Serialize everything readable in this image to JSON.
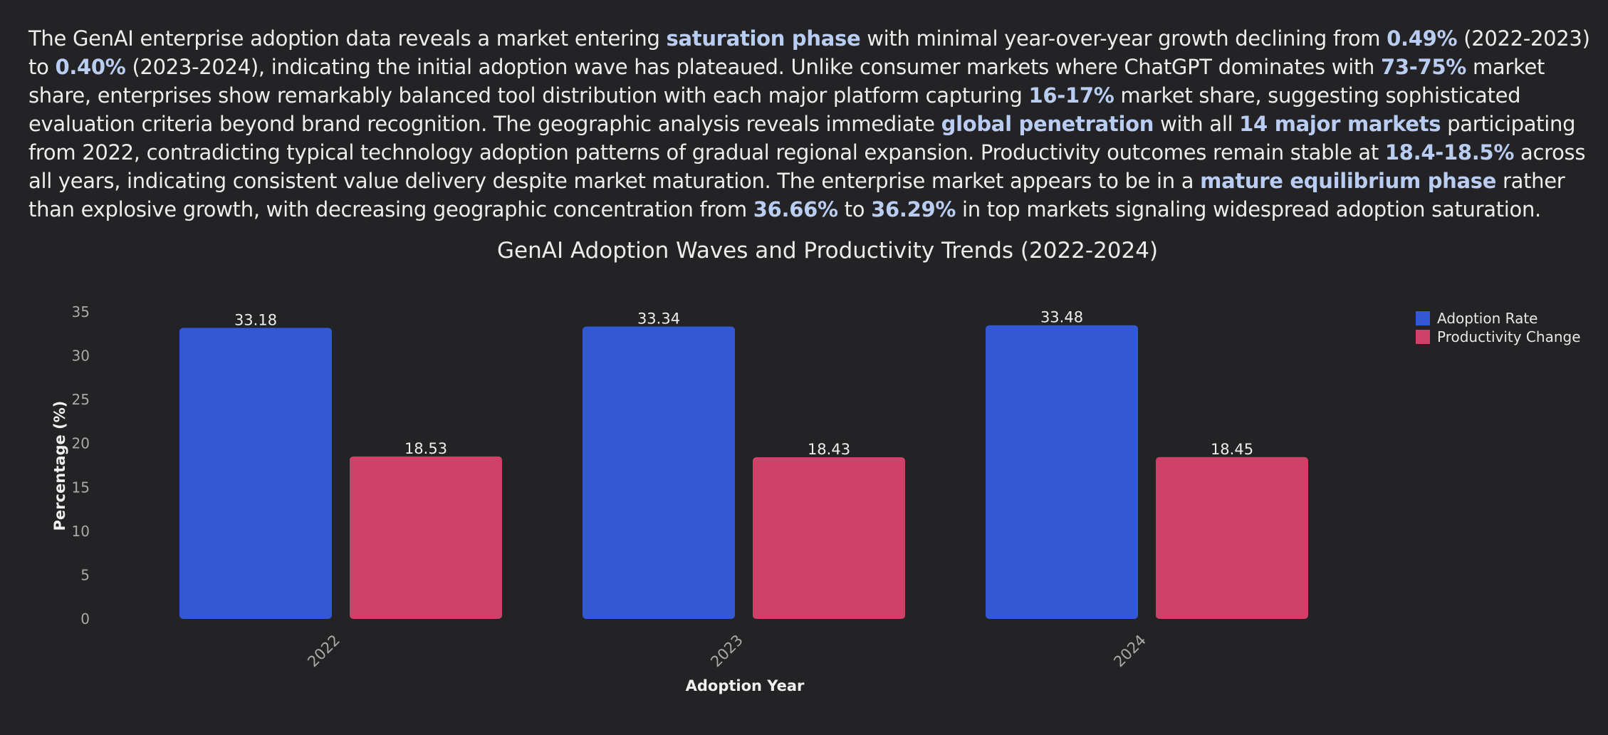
{
  "summary": {
    "t1": "The GenAI enterprise adoption data reveals a market entering ",
    "b1": "saturation phase",
    "t2": " with minimal year-over-year growth declining from ",
    "b2": "0.49%",
    "t3": " (2022-2023) to ",
    "b3": "0.40%",
    "t4": " (2023-2024), indicating the initial adoption wave has plateaued. Unlike consumer markets where ChatGPT dominates with ",
    "b4": "73-75%",
    "t5": " market share, enterprises show remarkably balanced tool distribution with each major platform capturing ",
    "b5": "16-17%",
    "t6": " market share, suggesting sophisticated evaluation criteria beyond brand recognition. The geographic analysis reveals immediate ",
    "b6": "global penetration",
    "t7": " with all ",
    "b7": "14 major markets",
    "t8": " participating from 2022, contradicting typical technology adoption patterns of gradual regional expansion. Productivity outcomes remain stable at ",
    "b8": "18.4-18.5%",
    "t9": " across all years, indicating consistent value delivery despite market maturation. The enterprise market appears to be in a ",
    "b9": "mature equilibrium phase",
    "t10": " rather than explosive growth, with decreasing geographic concentration from ",
    "b10": "36.66%",
    "t11": " to ",
    "b11": "36.29%",
    "t12": " in top markets signaling widespread adoption saturation."
  },
  "chart_data": {
    "type": "bar",
    "title": "GenAI Adoption Waves and Productivity Trends (2022-2024)",
    "xlabel": "Adoption Year",
    "ylabel": "Percentage (%)",
    "categories": [
      "2022",
      "2023",
      "2024"
    ],
    "series": [
      {
        "name": "Adoption Rate",
        "values": [
          33.18,
          33.34,
          33.48
        ],
        "color": "#3358d4"
      },
      {
        "name": "Productivity Change",
        "values": [
          18.53,
          18.43,
          18.45
        ],
        "color": "#cf4168"
      }
    ],
    "ylim": [
      0,
      35
    ],
    "yticks": [
      0,
      5,
      10,
      15,
      20,
      25,
      30,
      35
    ],
    "grid": false,
    "legend_position": "top-right"
  },
  "colors": {
    "background": "#232325",
    "highlight": "#b9cdf2",
    "tick_text": "#a9a9a9"
  }
}
